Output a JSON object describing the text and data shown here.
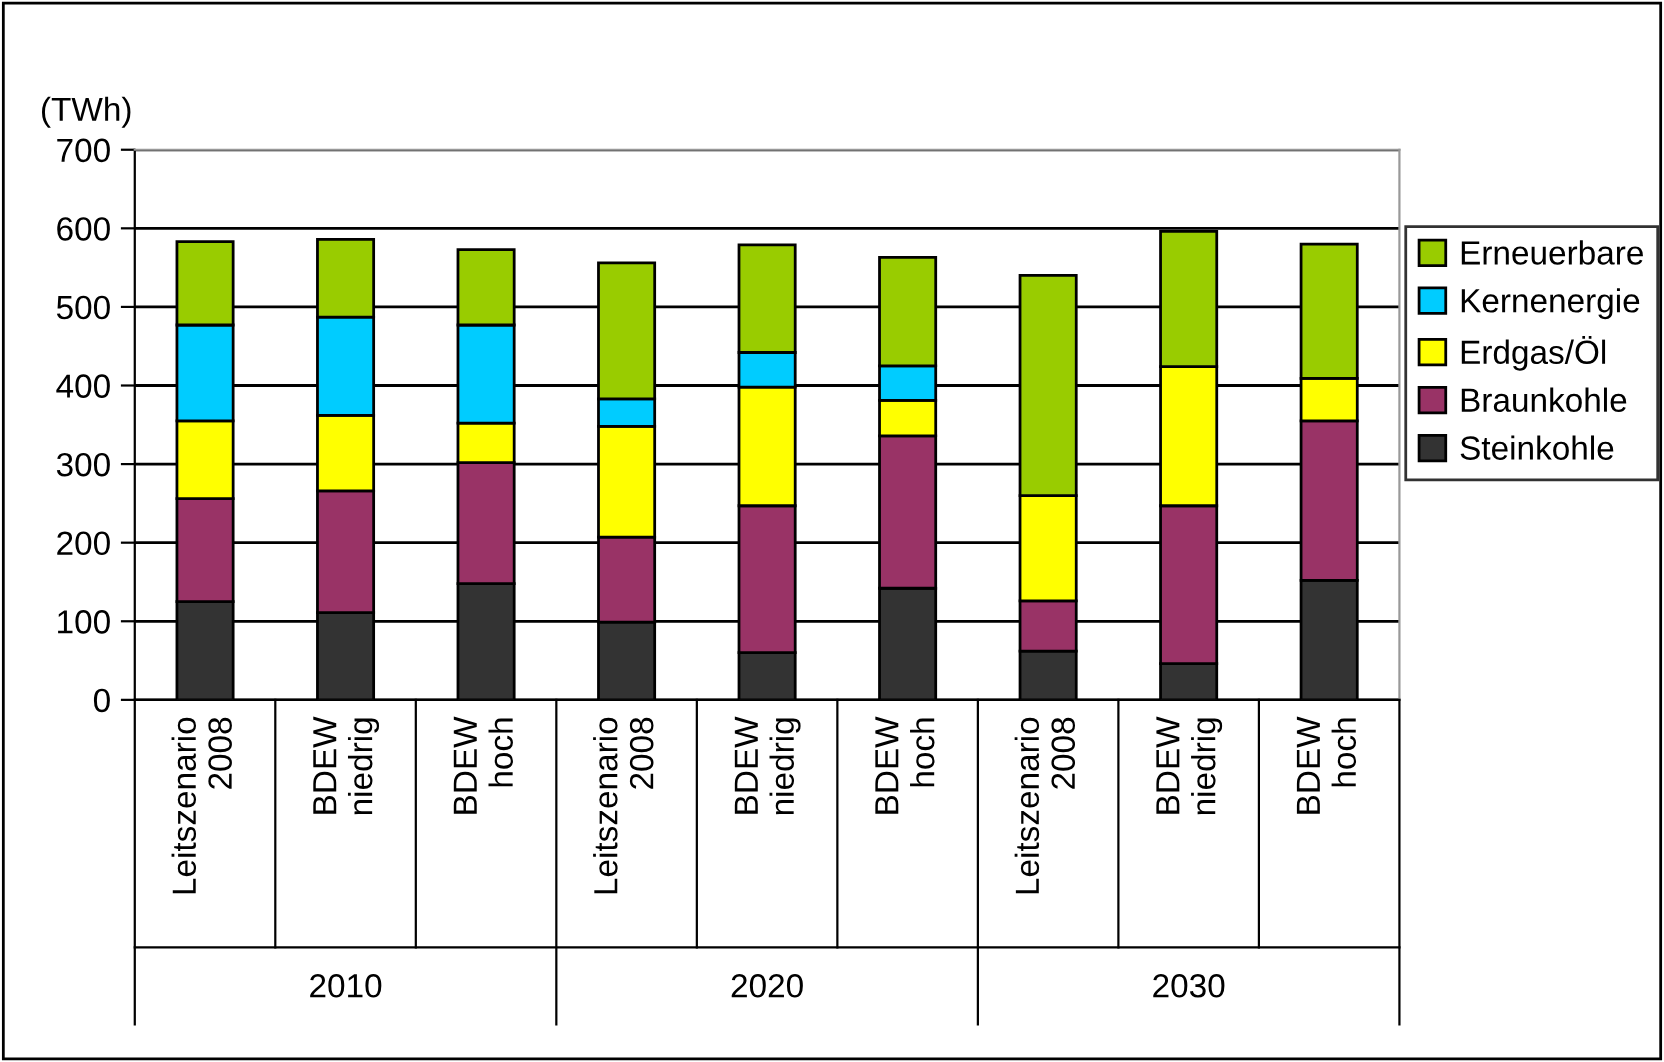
{
  "chart_data": {
    "type": "bar",
    "stacked": true,
    "ylabel": "(TWh)",
    "categories": [
      "Leitszenario\n2008",
      "BDEW\nniedrig",
      "BDEW\nhoch",
      "Leitszenario\n2008",
      "BDEW\nniedrig",
      "BDEW\nhoch",
      "Leitszenario\n2008",
      "BDEW\nniedrig",
      "BDEW\nhoch"
    ],
    "annotations": [
      "2010",
      "2020",
      "2030"
    ],
    "series": [
      {
        "name": "Steinkohle",
        "color": "#333333",
        "values": [
          125,
          111,
          148,
          99,
          60,
          142,
          62,
          46,
          152
        ]
      },
      {
        "name": "Braunkohle",
        "color": "#993366",
        "values": [
          131,
          155,
          154,
          108,
          187,
          194,
          64,
          201,
          203
        ]
      },
      {
        "name": "Erdgas/Öl",
        "color": "#ffff00",
        "values": [
          99,
          96,
          50,
          141,
          151,
          45,
          134,
          177,
          54
        ]
      },
      {
        "name": "Kernenergie",
        "color": "#00ccff",
        "values": [
          122,
          125,
          125,
          35,
          44,
          44,
          null,
          null,
          null
        ]
      },
      {
        "name": "Erneuerbare",
        "color": "#99cc00",
        "values": [
          106,
          99,
          96,
          173,
          137,
          138,
          280,
          172,
          171
        ]
      }
    ],
    "ylim": [
      0,
      700
    ],
    "yticks": [
      0,
      100,
      200,
      300,
      400,
      500,
      600,
      700
    ],
    "grid": "y",
    "legend": "right"
  }
}
